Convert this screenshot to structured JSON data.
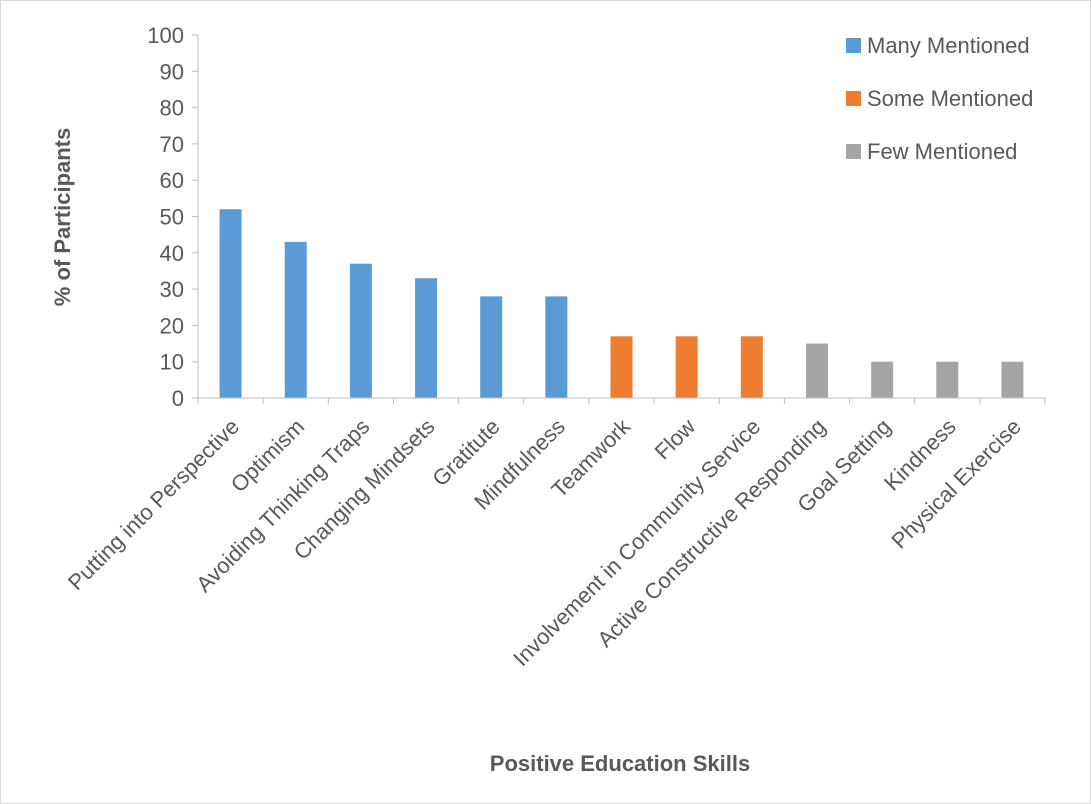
{
  "chart_data": {
    "type": "bar",
    "title": "",
    "xlabel": "Positive Education Skills",
    "ylabel": "% of Participants",
    "ylim": [
      0,
      100
    ],
    "yticks": [
      0,
      10,
      20,
      30,
      40,
      50,
      60,
      70,
      80,
      90,
      100
    ],
    "grid": false,
    "legend_position": "top-right",
    "categories": [
      "Putting into Perspective",
      "Optimism",
      "Avoiding Thinking Traps",
      "Changing Mindsets",
      "Gratitute",
      "Mindfulness",
      "Teamwork",
      "Flow",
      "Involvement in Community Service",
      "Active Constructive Responding",
      "Goal Setting",
      "Kindness",
      "Physical Exercise"
    ],
    "values": [
      52,
      43,
      37,
      33,
      28,
      28,
      17,
      17,
      17,
      15,
      10,
      10,
      10
    ],
    "groups": [
      "many",
      "many",
      "many",
      "many",
      "many",
      "many",
      "some",
      "some",
      "some",
      "few",
      "few",
      "few",
      "few"
    ],
    "legend": [
      {
        "key": "many",
        "label": "Many Mentioned",
        "color": "#5b9bd5"
      },
      {
        "key": "some",
        "label": "Some Mentioned",
        "color": "#ed7d31"
      },
      {
        "key": "few",
        "label": "Few Mentioned",
        "color": "#a5a5a5"
      }
    ]
  }
}
